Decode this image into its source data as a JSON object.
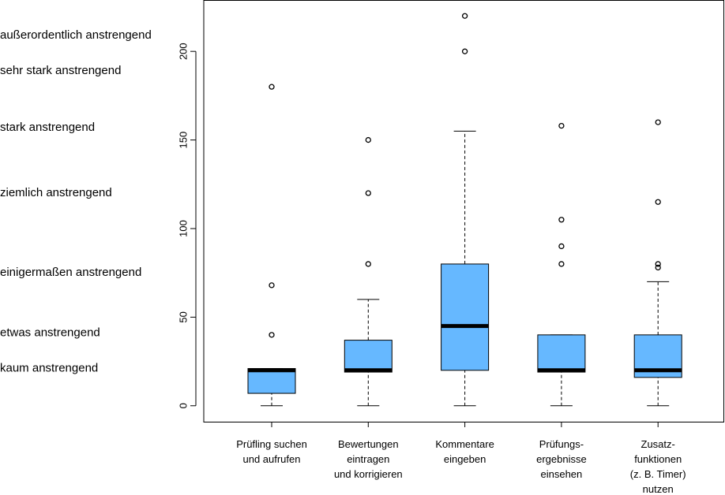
{
  "chart_data": {
    "type": "boxplot",
    "categories": [
      [
        "Prüfling suchen",
        "und aufrufen"
      ],
      [
        "Bewertungen",
        "eintragen",
        "und korrigieren"
      ],
      [
        "Kommentare",
        "eingeben"
      ],
      [
        "Prüfungs-",
        "ergebnisse",
        "einsehen"
      ],
      [
        "Zusatz-",
        "funktionen",
        "(z. B. Timer)",
        "nutzen"
      ]
    ],
    "boxes": [
      {
        "min": 0,
        "q1": 7,
        "median": 20,
        "q3": 21,
        "max": 21,
        "outliers": [
          40,
          68,
          180
        ]
      },
      {
        "min": 0,
        "q1": 19,
        "median": 20,
        "q3": 37,
        "max": 60,
        "outliers": [
          80,
          120,
          150
        ]
      },
      {
        "min": 0,
        "q1": 20,
        "median": 45,
        "q3": 80,
        "max": 155,
        "outliers": [
          200,
          220
        ]
      },
      {
        "min": 0,
        "q1": 19,
        "median": 20,
        "q3": 40,
        "max": 40,
        "outliers": [
          80,
          90,
          105,
          158
        ]
      },
      {
        "min": 0,
        "q1": 16,
        "median": 20,
        "q3": 40,
        "max": 70,
        "outliers": [
          78,
          80,
          115,
          160
        ]
      }
    ],
    "color": "#66b8ff",
    "ylim": [
      -9,
      229
    ],
    "yticks": [
      0,
      50,
      100,
      150,
      200
    ],
    "scale_labels": [
      {
        "value": 209,
        "label": "außerordentlich anstrengend"
      },
      {
        "value": 189,
        "label": "sehr stark anstrengend"
      },
      {
        "value": 157,
        "label": "stark anstrengend"
      },
      {
        "value": 120,
        "label": "ziemlich anstrengend"
      },
      {
        "value": 75,
        "label": "einigermaßen anstrengend"
      },
      {
        "value": 41,
        "label": "etwas anstrengend"
      },
      {
        "value": 21,
        "label": "kaum anstrengend"
      }
    ]
  }
}
